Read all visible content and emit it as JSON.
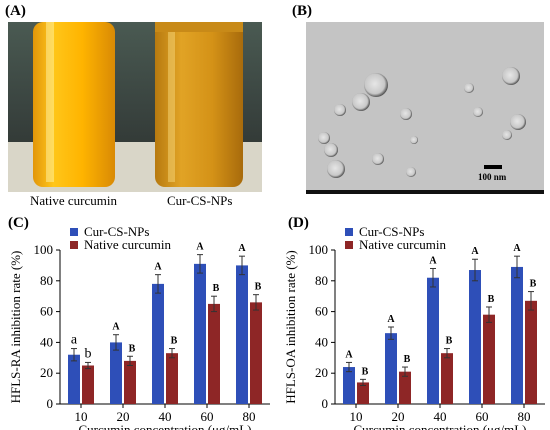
{
  "panels": {
    "a": {
      "label": "(A)",
      "vial_left": "Native curcumin",
      "vial_right": "Cur-CS-NPs"
    },
    "b": {
      "label": "(B)",
      "scale_label": "100 nm"
    },
    "c": {
      "label": "(C)"
    },
    "d": {
      "label": "(D)"
    }
  },
  "chart_data": [
    {
      "type": "bar",
      "panel": "C",
      "categories": [
        "10",
        "20",
        "40",
        "60",
        "80"
      ],
      "xlabel": "Curcumin concentration (μg/mL)",
      "ylabel": "HFLS-RA inhibition rate (%)",
      "ylim": [
        0,
        100
      ],
      "yticks": [
        "0",
        "20",
        "40",
        "60",
        "80",
        "100"
      ],
      "legend_position": "top-left",
      "series": [
        {
          "name": "Cur-CS-NPs",
          "color": "#2e4fb8",
          "values": [
            32,
            40,
            78,
            91,
            90
          ],
          "errors": [
            4,
            5,
            6,
            6,
            6
          ],
          "labels": [
            "a",
            "A",
            "A",
            "A",
            "A"
          ]
        },
        {
          "name": "Native curcumin",
          "color": "#8e2626",
          "values": [
            25,
            28,
            33,
            65,
            66
          ],
          "errors": [
            2,
            3,
            3,
            5,
            5
          ],
          "labels": [
            "b",
            "B",
            "B",
            "B",
            "B"
          ]
        }
      ]
    },
    {
      "type": "bar",
      "panel": "D",
      "categories": [
        "10",
        "20",
        "40",
        "60",
        "80"
      ],
      "xlabel": "Curcumin concentration (μg/mL)",
      "ylabel": "HFLS-OA inhibition rate (%)",
      "ylim": [
        0,
        100
      ],
      "yticks": [
        "0",
        "20",
        "40",
        "60",
        "80",
        "100"
      ],
      "legend_position": "top-left",
      "series": [
        {
          "name": "Cur-CS-NPs",
          "color": "#2e4fb8",
          "values": [
            24,
            46,
            82,
            87,
            89
          ],
          "errors": [
            3,
            4,
            6,
            7,
            7
          ],
          "labels": [
            "A",
            "A",
            "A",
            "A",
            "A"
          ]
        },
        {
          "name": "Native curcumin",
          "color": "#8e2626",
          "values": [
            14,
            21,
            33,
            58,
            67
          ],
          "errors": [
            2,
            3,
            3,
            5,
            6
          ],
          "labels": [
            "B",
            "B",
            "B",
            "B",
            "B"
          ]
        }
      ]
    }
  ]
}
